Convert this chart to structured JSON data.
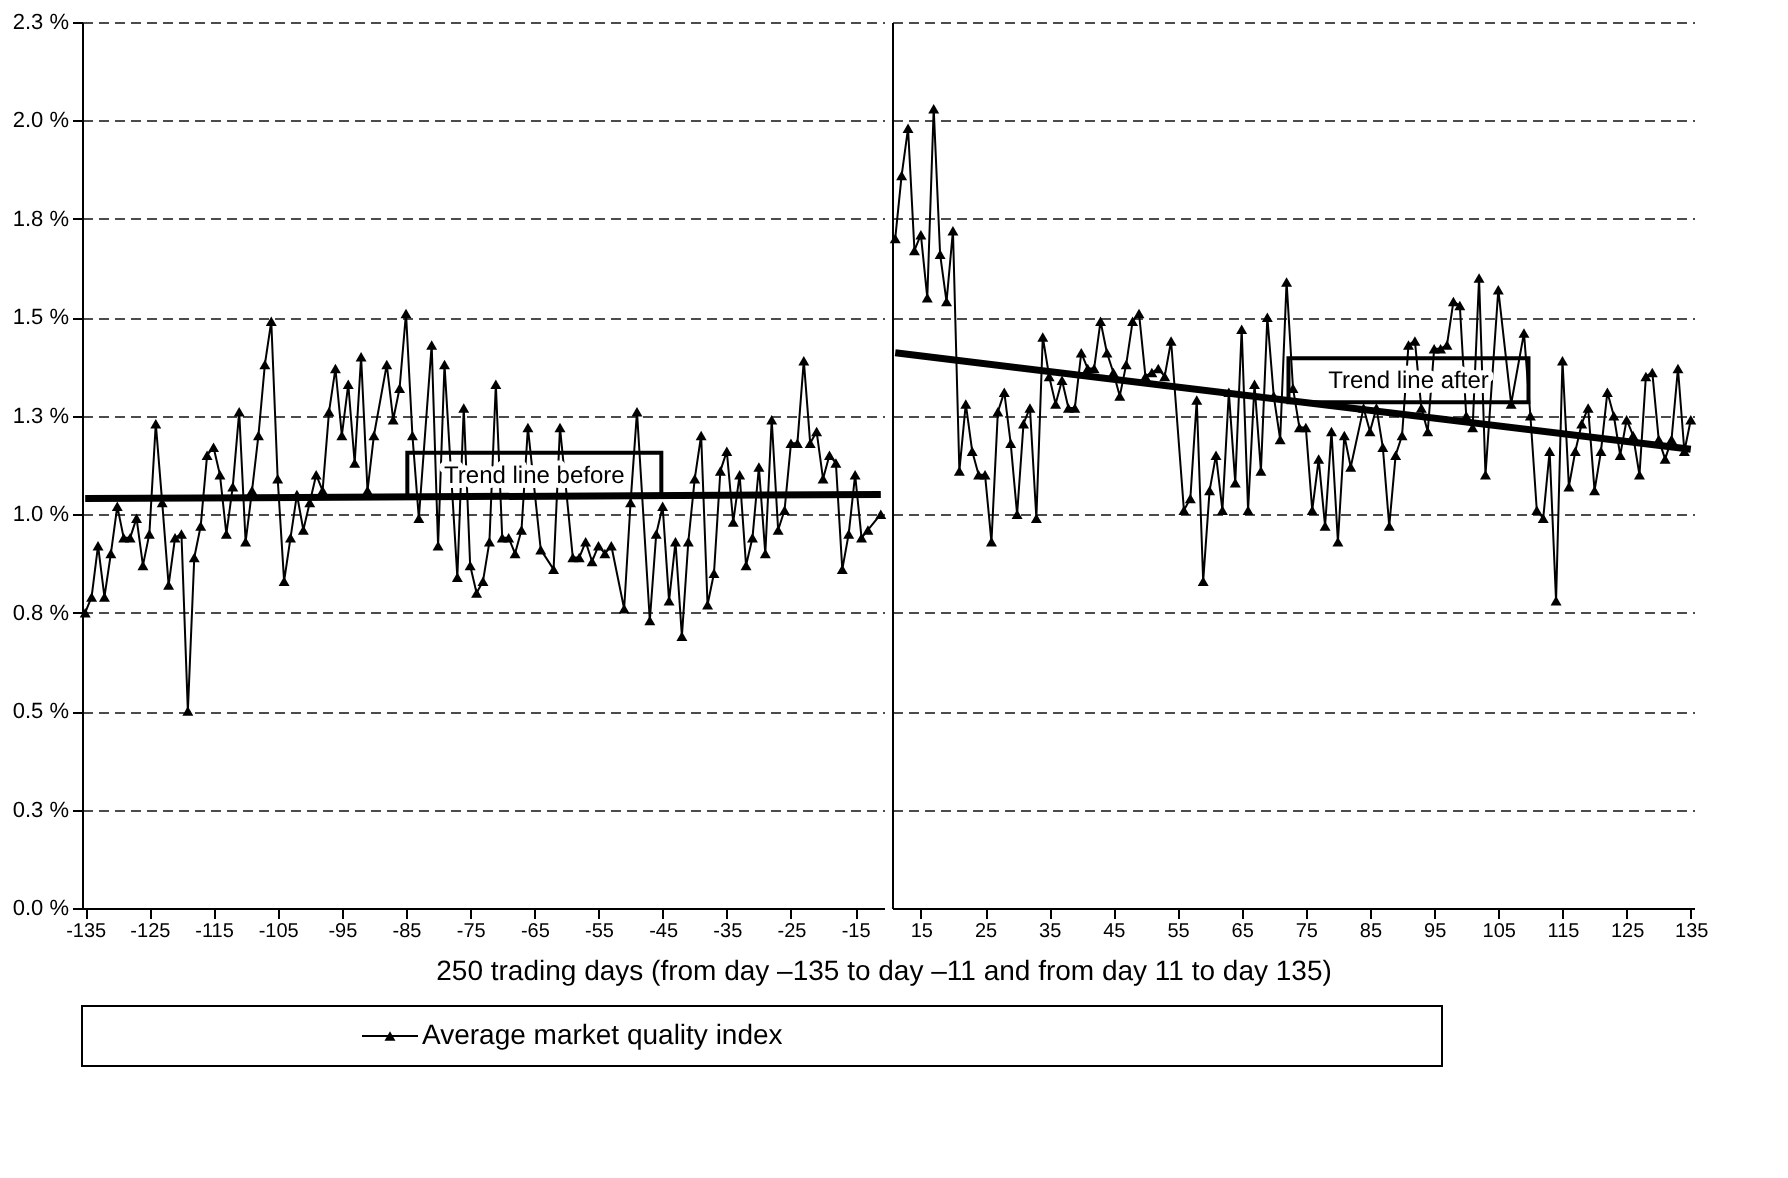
{
  "chart_data": [
    {
      "type": "line",
      "xlabel": "250 trading days (from day –135 to day –11 and from day 11 to day 135)",
      "legend": "bottom",
      "grid": "y",
      "xlim": [
        -135.5,
        -10.5
      ],
      "xticks": [
        -135,
        -125,
        -115,
        -105,
        -95,
        -85,
        -75,
        -65,
        -55,
        -45,
        -35,
        -25,
        -15
      ],
      "ylim": [
        0,
        2.25
      ],
      "yticks": [
        {
          "value": 0,
          "label": "0.0 %"
        },
        {
          "value": 0.25,
          "label": "0.3 %"
        },
        {
          "value": 0.5,
          "label": "0.5 %"
        },
        {
          "value": 0.75,
          "label": "0.8 %"
        },
        {
          "value": 1,
          "label": "1.0 %"
        },
        {
          "value": 1.25,
          "label": "1.3 %"
        },
        {
          "value": 1.5,
          "label": "1.5 %"
        },
        {
          "value": 1.75,
          "label": "1.8 %"
        },
        {
          "value": 2,
          "label": "2.0 %"
        },
        {
          "value": 2.25,
          "label": "2.3 %"
        }
      ],
      "series": [
        {
          "name": "Average market quality index",
          "color": "#000000",
          "marker": "triangle",
          "x": [
            -135,
            -134,
            -133,
            -132,
            -131,
            -130,
            -129,
            -128,
            -127,
            -126,
            -125,
            -124,
            -123,
            -122,
            -121,
            -120,
            -119,
            -118,
            -117,
            -116,
            -115,
            -114,
            -113,
            -112,
            -111,
            -110,
            -109,
            -108,
            -107,
            -106,
            -105,
            -104,
            -103,
            -102,
            -101,
            -100,
            -99,
            -98,
            -97,
            -96,
            -95,
            -94,
            -93,
            -92,
            -91,
            -90,
            -88,
            -87,
            -86,
            -85,
            -84,
            -83,
            -81,
            -80,
            -79,
            -77,
            -76,
            -75,
            -74,
            -73,
            -72,
            -71,
            -70,
            -69,
            -68,
            -67,
            -66,
            -64,
            -62,
            -61,
            -59,
            -58,
            -57,
            -56,
            -55,
            -54,
            -53,
            -51,
            -50,
            -49,
            -47,
            -46,
            -45,
            -44,
            -43,
            -42,
            -41,
            -40,
            -39,
            -38,
            -37,
            -36,
            -35,
            -34,
            -33,
            -32,
            -31,
            -30,
            -29,
            -28,
            -27,
            -26,
            -25,
            -24,
            -23,
            -22,
            -21,
            -20,
            -19,
            -18,
            -17,
            -16,
            -15,
            -14,
            -13,
            -11
          ],
          "values": [
            0.75,
            0.79,
            0.92,
            0.79,
            0.9,
            1.02,
            0.94,
            0.94,
            0.99,
            0.87,
            0.95,
            1.23,
            1.03,
            0.82,
            0.94,
            0.95,
            0.5,
            0.89,
            0.97,
            1.15,
            1.17,
            1.1,
            0.95,
            1.07,
            1.26,
            0.93,
            1.06,
            1.2,
            1.38,
            1.49,
            1.09,
            0.83,
            0.94,
            1.05,
            0.96,
            1.03,
            1.1,
            1.06,
            1.26,
            1.37,
            1.2,
            1.33,
            1.13,
            1.4,
            1.06,
            1.2,
            1.38,
            1.24,
            1.32,
            1.51,
            1.2,
            0.99,
            1.43,
            0.92,
            1.38,
            0.84,
            1.27,
            0.87,
            0.8,
            0.83,
            0.93,
            1.33,
            0.94,
            0.94,
            0.9,
            0.96,
            1.22,
            0.91,
            0.86,
            1.22,
            0.89,
            0.89,
            0.93,
            0.88,
            0.92,
            0.9,
            0.92,
            0.76,
            1.03,
            1.26,
            0.73,
            0.95,
            1.02,
            0.78,
            0.93,
            0.69,
            0.93,
            1.09,
            1.2,
            0.77,
            0.85,
            1.11,
            1.16,
            0.98,
            1.1,
            0.87,
            0.94,
            1.12,
            0.9,
            1.24,
            0.96,
            1.01,
            1.18,
            1.18,
            1.39,
            1.18,
            1.21,
            1.09,
            1.15,
            1.13,
            0.86,
            0.95,
            1.1,
            0.94,
            0.96,
            1.0
          ]
        },
        {
          "type": "line",
          "color": "#000000",
          "marker": "none",
          "x": [
            -135,
            -11
          ],
          "values": [
            1.04,
            1.05
          ]
        }
      ],
      "annotations": [
        {
          "text": "Trend line before",
          "x": -65,
          "y": 1.1
        }
      ]
    },
    {
      "type": "line",
      "grid": "y",
      "tick_labels": "x",
      "xlim": [
        10.5,
        135.5
      ],
      "xticks": [
        15,
        25,
        35,
        45,
        55,
        65,
        75,
        85,
        95,
        105,
        115,
        125,
        135
      ],
      "ylim": [
        0,
        2.25
      ],
      "series": [
        {
          "color": "#000000",
          "marker": "triangle",
          "x": [
            11,
            12,
            13,
            14,
            15,
            16,
            17,
            18,
            19,
            20,
            21,
            22,
            23,
            24,
            25,
            26,
            27,
            28,
            29,
            30,
            31,
            32,
            33,
            34,
            35,
            36,
            37,
            38,
            39,
            40,
            41,
            42,
            43,
            44,
            45,
            46,
            47,
            48,
            49,
            50,
            51,
            52,
            53,
            54,
            56,
            57,
            58,
            59,
            60,
            61,
            62,
            63,
            64,
            65,
            66,
            67,
            68,
            69,
            70,
            71,
            72,
            73,
            74,
            75,
            76,
            77,
            78,
            79,
            80,
            81,
            82,
            84,
            85,
            86,
            87,
            88,
            89,
            90,
            91,
            92,
            93,
            94,
            95,
            96,
            97,
            98,
            99,
            100,
            101,
            102,
            103,
            105,
            107,
            109,
            110,
            111,
            112,
            113,
            114,
            115,
            116,
            117,
            118,
            119,
            120,
            121,
            122,
            123,
            124,
            125,
            126,
            127,
            128,
            129,
            130,
            131,
            132,
            133,
            134,
            135
          ],
          "values": [
            1.7,
            1.86,
            1.98,
            1.67,
            1.71,
            1.55,
            2.03,
            1.66,
            1.54,
            1.72,
            1.11,
            1.28,
            1.16,
            1.1,
            1.1,
            0.93,
            1.26,
            1.31,
            1.18,
            1.0,
            1.23,
            1.27,
            0.99,
            1.45,
            1.35,
            1.28,
            1.34,
            1.27,
            1.27,
            1.41,
            1.37,
            1.37,
            1.49,
            1.41,
            1.36,
            1.3,
            1.38,
            1.49,
            1.51,
            1.35,
            1.36,
            1.37,
            1.35,
            1.44,
            1.01,
            1.04,
            1.29,
            0.83,
            1.06,
            1.15,
            1.01,
            1.31,
            1.08,
            1.47,
            1.01,
            1.33,
            1.11,
            1.5,
            1.3,
            1.19,
            1.59,
            1.32,
            1.22,
            1.22,
            1.01,
            1.14,
            0.97,
            1.21,
            0.93,
            1.2,
            1.12,
            1.27,
            1.21,
            1.27,
            1.17,
            0.97,
            1.15,
            1.2,
            1.43,
            1.44,
            1.27,
            1.21,
            1.42,
            1.42,
            1.43,
            1.54,
            1.53,
            1.25,
            1.22,
            1.6,
            1.1,
            1.57,
            1.28,
            1.46,
            1.25,
            1.01,
            0.99,
            1.16,
            0.78,
            1.39,
            1.07,
            1.16,
            1.23,
            1.27,
            1.06,
            1.16,
            1.31,
            1.25,
            1.15,
            1.24,
            1.2,
            1.1,
            1.35,
            1.36,
            1.19,
            1.14,
            1.19,
            1.37,
            1.16,
            1.24
          ]
        },
        {
          "type": "line",
          "color": "#000000",
          "marker": "none",
          "x": [
            11,
            135
          ],
          "values": [
            1.41,
            1.165
          ]
        }
      ],
      "annotations": [
        {
          "text": "Trend line after",
          "x": 91,
          "y": 1.34
        }
      ]
    }
  ]
}
